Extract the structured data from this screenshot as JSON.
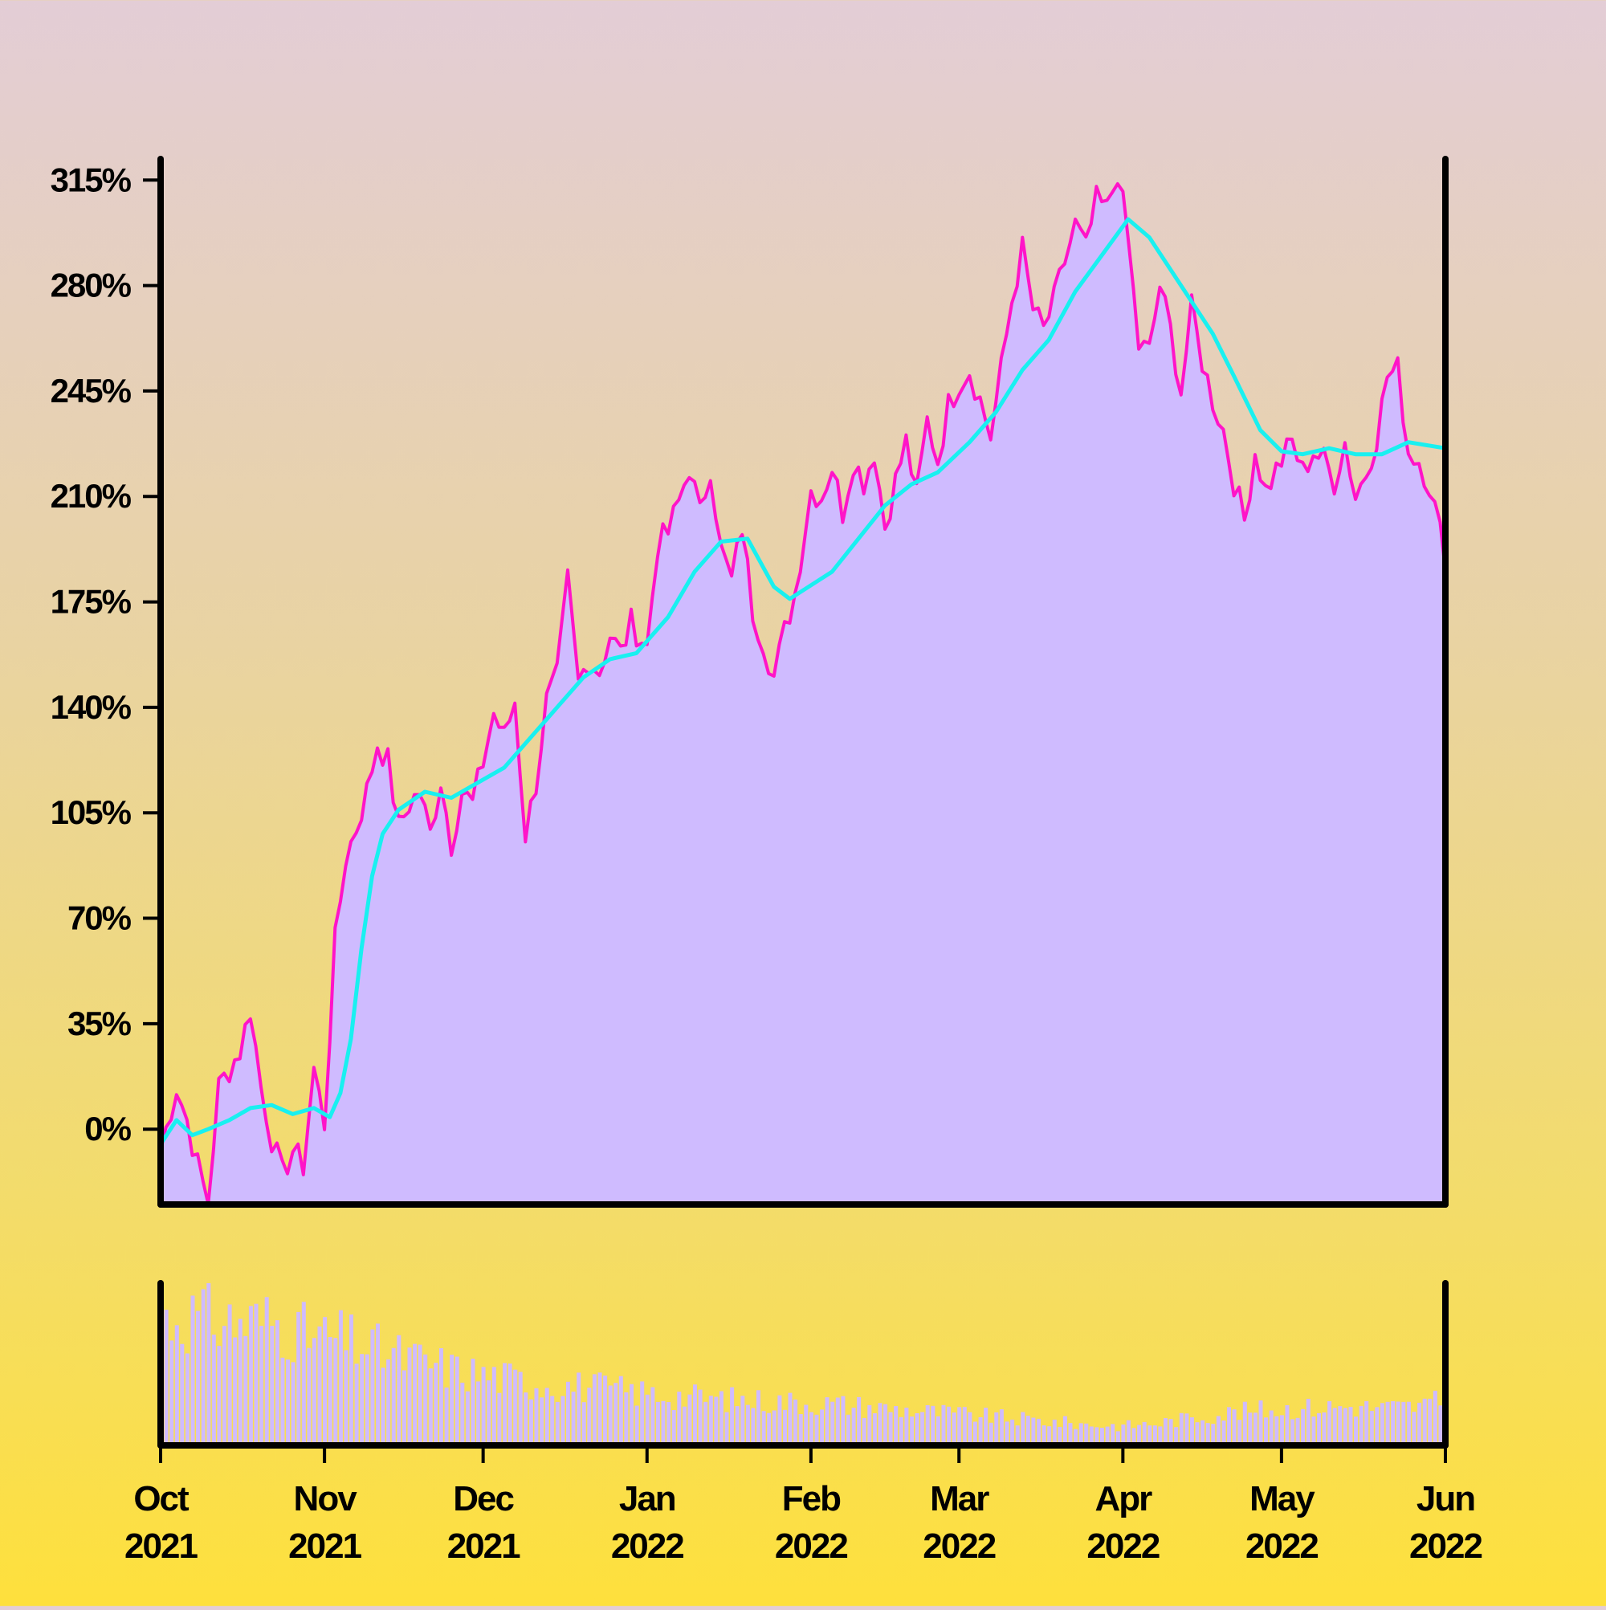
{
  "chart_data": {
    "type": "area",
    "title": "",
    "xlabel": "",
    "ylabel": "",
    "x_range": [
      "2021-10-01",
      "2022-06-01"
    ],
    "y_range": [
      -25,
      322
    ],
    "y_tick_values": [
      0,
      35,
      70,
      105,
      140,
      175,
      210,
      245,
      280,
      315
    ],
    "y_tick_labels": [
      "0%",
      "35%",
      "70%",
      "105%",
      "140%",
      "175%",
      "210%",
      "245%",
      "280%",
      "315%"
    ],
    "x_ticks": [
      {
        "date": "2021-10-01",
        "month": "Oct",
        "year": "2021"
      },
      {
        "date": "2021-11-01",
        "month": "Nov",
        "year": "2021"
      },
      {
        "date": "2021-12-01",
        "month": "Dec",
        "year": "2021"
      },
      {
        "date": "2022-01-01",
        "month": "Jan",
        "year": "2022"
      },
      {
        "date": "2022-02-01",
        "month": "Feb",
        "year": "2022"
      },
      {
        "date": "2022-03-01",
        "month": "Mar",
        "year": "2022"
      },
      {
        "date": "2022-04-01",
        "month": "Apr",
        "year": "2022"
      },
      {
        "date": "2022-05-01",
        "month": "May",
        "year": "2022"
      },
      {
        "date": "2022-06-01",
        "month": "Jun",
        "year": "2022"
      }
    ],
    "grid": false,
    "legend": "none",
    "colors": {
      "area_fill": "#cfbbff",
      "price_line": "#ff14c8",
      "moving_average": "#19f0f0",
      "axis": "#000000",
      "volume_bars": "#cfbbff"
    },
    "series": [
      {
        "kind": "percent_change_area",
        "points": [
          [
            "2021-10-01",
            -7
          ],
          [
            "2021-10-04",
            14
          ],
          [
            "2021-10-06",
            3
          ],
          [
            "2021-10-08",
            -12
          ],
          [
            "2021-10-10",
            -24
          ],
          [
            "2021-10-12",
            14
          ],
          [
            "2021-10-14",
            20
          ],
          [
            "2021-10-16",
            26
          ],
          [
            "2021-10-18",
            40
          ],
          [
            "2021-10-20",
            14
          ],
          [
            "2021-10-22",
            -3
          ],
          [
            "2021-10-24",
            -15
          ],
          [
            "2021-10-26",
            -7
          ],
          [
            "2021-10-28",
            -12
          ],
          [
            "2021-10-30",
            20
          ],
          [
            "2021-11-01",
            2
          ],
          [
            "2021-11-03",
            62
          ],
          [
            "2021-11-05",
            90
          ],
          [
            "2021-11-07",
            100
          ],
          [
            "2021-11-09",
            112
          ],
          [
            "2021-11-11",
            128
          ],
          [
            "2021-11-13",
            122
          ],
          [
            "2021-11-15",
            100
          ],
          [
            "2021-11-17",
            108
          ],
          [
            "2021-11-19",
            112
          ],
          [
            "2021-11-21",
            98
          ],
          [
            "2021-11-23",
            116
          ],
          [
            "2021-11-25",
            95
          ],
          [
            "2021-11-27",
            112
          ],
          [
            "2021-11-29",
            108
          ],
          [
            "2021-12-01",
            122
          ],
          [
            "2021-12-03",
            138
          ],
          [
            "2021-12-05",
            130
          ],
          [
            "2021-12-07",
            142
          ],
          [
            "2021-12-09",
            98
          ],
          [
            "2021-12-11",
            115
          ],
          [
            "2021-12-13",
            142
          ],
          [
            "2021-12-15",
            150
          ],
          [
            "2021-12-17",
            182
          ],
          [
            "2021-12-19",
            148
          ],
          [
            "2021-12-21",
            156
          ],
          [
            "2021-12-23",
            152
          ],
          [
            "2021-12-25",
            164
          ],
          [
            "2021-12-27",
            158
          ],
          [
            "2021-12-29",
            168
          ],
          [
            "2022-01-01",
            160
          ],
          [
            "2022-01-03",
            194
          ],
          [
            "2022-01-05",
            198
          ],
          [
            "2022-01-07",
            208
          ],
          [
            "2022-01-09",
            220
          ],
          [
            "2022-01-11",
            204
          ],
          [
            "2022-01-13",
            220
          ],
          [
            "2022-01-15",
            192
          ],
          [
            "2022-01-17",
            182
          ],
          [
            "2022-01-19",
            200
          ],
          [
            "2022-01-21",
            172
          ],
          [
            "2022-01-23",
            162
          ],
          [
            "2022-01-25",
            150
          ],
          [
            "2022-01-27",
            165
          ],
          [
            "2022-01-29",
            178
          ],
          [
            "2022-02-01",
            212
          ],
          [
            "2022-02-03",
            210
          ],
          [
            "2022-02-05",
            220
          ],
          [
            "2022-02-07",
            205
          ],
          [
            "2022-02-09",
            222
          ],
          [
            "2022-02-11",
            215
          ],
          [
            "2022-02-13",
            225
          ],
          [
            "2022-02-15",
            200
          ],
          [
            "2022-02-17",
            215
          ],
          [
            "2022-02-19",
            228
          ],
          [
            "2022-02-21",
            210
          ],
          [
            "2022-02-23",
            235
          ],
          [
            "2022-02-25",
            222
          ],
          [
            "2022-02-27",
            240
          ],
          [
            "2022-03-01",
            248
          ],
          [
            "2022-03-03",
            252
          ],
          [
            "2022-03-05",
            242
          ],
          [
            "2022-03-07",
            230
          ],
          [
            "2022-03-09",
            252
          ],
          [
            "2022-03-11",
            275
          ],
          [
            "2022-03-13",
            292
          ],
          [
            "2022-03-15",
            272
          ],
          [
            "2022-03-17",
            265
          ],
          [
            "2022-03-19",
            275
          ],
          [
            "2022-03-21",
            288
          ],
          [
            "2022-03-23",
            300
          ],
          [
            "2022-03-25",
            292
          ],
          [
            "2022-03-27",
            308
          ],
          [
            "2022-03-29",
            305
          ],
          [
            "2022-03-31",
            318
          ],
          [
            "2022-04-02",
            295
          ],
          [
            "2022-04-04",
            260
          ],
          [
            "2022-04-06",
            258
          ],
          [
            "2022-04-08",
            280
          ],
          [
            "2022-04-10",
            265
          ],
          [
            "2022-04-12",
            245
          ],
          [
            "2022-04-14",
            272
          ],
          [
            "2022-04-16",
            255
          ],
          [
            "2022-04-18",
            242
          ],
          [
            "2022-04-20",
            232
          ],
          [
            "2022-04-22",
            215
          ],
          [
            "2022-04-24",
            202
          ],
          [
            "2022-04-26",
            225
          ],
          [
            "2022-04-28",
            212
          ],
          [
            "2022-05-01",
            222
          ],
          [
            "2022-05-03",
            228
          ],
          [
            "2022-05-05",
            218
          ],
          [
            "2022-05-07",
            225
          ],
          [
            "2022-05-09",
            222
          ],
          [
            "2022-05-11",
            215
          ],
          [
            "2022-05-13",
            228
          ],
          [
            "2022-05-15",
            210
          ],
          [
            "2022-05-17",
            218
          ],
          [
            "2022-05-19",
            230
          ],
          [
            "2022-05-21",
            250
          ],
          [
            "2022-05-23",
            252
          ],
          [
            "2022-05-25",
            225
          ],
          [
            "2022-05-27",
            222
          ],
          [
            "2022-05-29",
            214
          ],
          [
            "2022-06-01",
            190
          ]
        ]
      },
      {
        "kind": "moving_average",
        "points": [
          [
            "2021-10-01",
            -5
          ],
          [
            "2021-10-04",
            3
          ],
          [
            "2021-10-07",
            -2
          ],
          [
            "2021-10-10",
            0
          ],
          [
            "2021-10-14",
            3
          ],
          [
            "2021-10-18",
            7
          ],
          [
            "2021-10-22",
            8
          ],
          [
            "2021-10-26",
            5
          ],
          [
            "2021-10-30",
            7
          ],
          [
            "2021-11-02",
            4
          ],
          [
            "2021-11-04",
            12
          ],
          [
            "2021-11-06",
            30
          ],
          [
            "2021-11-08",
            60
          ],
          [
            "2021-11-10",
            84
          ],
          [
            "2021-11-12",
            98
          ],
          [
            "2021-11-15",
            106
          ],
          [
            "2021-11-20",
            112
          ],
          [
            "2021-11-25",
            110
          ],
          [
            "2021-12-01",
            116
          ],
          [
            "2021-12-05",
            120
          ],
          [
            "2021-12-10",
            130
          ],
          [
            "2021-12-15",
            140
          ],
          [
            "2021-12-20",
            150
          ],
          [
            "2021-12-25",
            156
          ],
          [
            "2021-12-30",
            158
          ],
          [
            "2022-01-05",
            170
          ],
          [
            "2022-01-10",
            185
          ],
          [
            "2022-01-15",
            195
          ],
          [
            "2022-01-20",
            196
          ],
          [
            "2022-01-25",
            180
          ],
          [
            "2022-01-28",
            176
          ],
          [
            "2022-02-05",
            185
          ],
          [
            "2022-02-10",
            196
          ],
          [
            "2022-02-15",
            207
          ],
          [
            "2022-02-20",
            214
          ],
          [
            "2022-02-25",
            218
          ],
          [
            "2022-03-03",
            228
          ],
          [
            "2022-03-08",
            238
          ],
          [
            "2022-03-13",
            252
          ],
          [
            "2022-03-18",
            262
          ],
          [
            "2022-03-23",
            278
          ],
          [
            "2022-03-28",
            290
          ],
          [
            "2022-04-02",
            302
          ],
          [
            "2022-04-06",
            296
          ],
          [
            "2022-04-12",
            280
          ],
          [
            "2022-04-18",
            264
          ],
          [
            "2022-04-22",
            250
          ],
          [
            "2022-04-27",
            232
          ],
          [
            "2022-05-01",
            225
          ],
          [
            "2022-05-05",
            224
          ],
          [
            "2022-05-10",
            226
          ],
          [
            "2022-05-15",
            224
          ],
          [
            "2022-05-20",
            224
          ],
          [
            "2022-05-25",
            228
          ],
          [
            "2022-06-01",
            226
          ]
        ]
      },
      {
        "kind": "volume",
        "relative_values": [
          [
            "2021-10-01",
            0.84
          ],
          [
            "2021-10-08",
            0.86
          ],
          [
            "2021-10-15",
            0.82
          ],
          [
            "2021-10-22",
            0.83
          ],
          [
            "2021-10-29",
            0.73
          ],
          [
            "2021-11-05",
            0.7
          ],
          [
            "2021-11-12",
            0.62
          ],
          [
            "2021-11-19",
            0.56
          ],
          [
            "2021-11-26",
            0.5
          ],
          [
            "2021-12-03",
            0.46
          ],
          [
            "2021-12-10",
            0.42
          ],
          [
            "2021-12-17",
            0.4
          ],
          [
            "2021-12-24",
            0.38
          ],
          [
            "2021-12-31",
            0.35
          ],
          [
            "2022-01-07",
            0.33
          ],
          [
            "2022-01-14",
            0.31
          ],
          [
            "2022-01-21",
            0.3
          ],
          [
            "2022-01-28",
            0.29
          ],
          [
            "2022-02-04",
            0.28
          ],
          [
            "2022-02-11",
            0.26
          ],
          [
            "2022-02-18",
            0.24
          ],
          [
            "2022-02-25",
            0.22
          ],
          [
            "2022-03-04",
            0.2
          ],
          [
            "2022-03-11",
            0.18
          ],
          [
            "2022-03-18",
            0.16
          ],
          [
            "2022-03-25",
            0.14
          ],
          [
            "2022-04-01",
            0.13
          ],
          [
            "2022-04-08",
            0.15
          ],
          [
            "2022-04-15",
            0.19
          ],
          [
            "2022-04-22",
            0.22
          ],
          [
            "2022-04-29",
            0.24
          ],
          [
            "2022-05-06",
            0.25
          ],
          [
            "2022-05-13",
            0.26
          ],
          [
            "2022-05-20",
            0.25
          ],
          [
            "2022-05-27",
            0.26
          ],
          [
            "2022-06-01",
            0.3
          ]
        ]
      }
    ]
  }
}
